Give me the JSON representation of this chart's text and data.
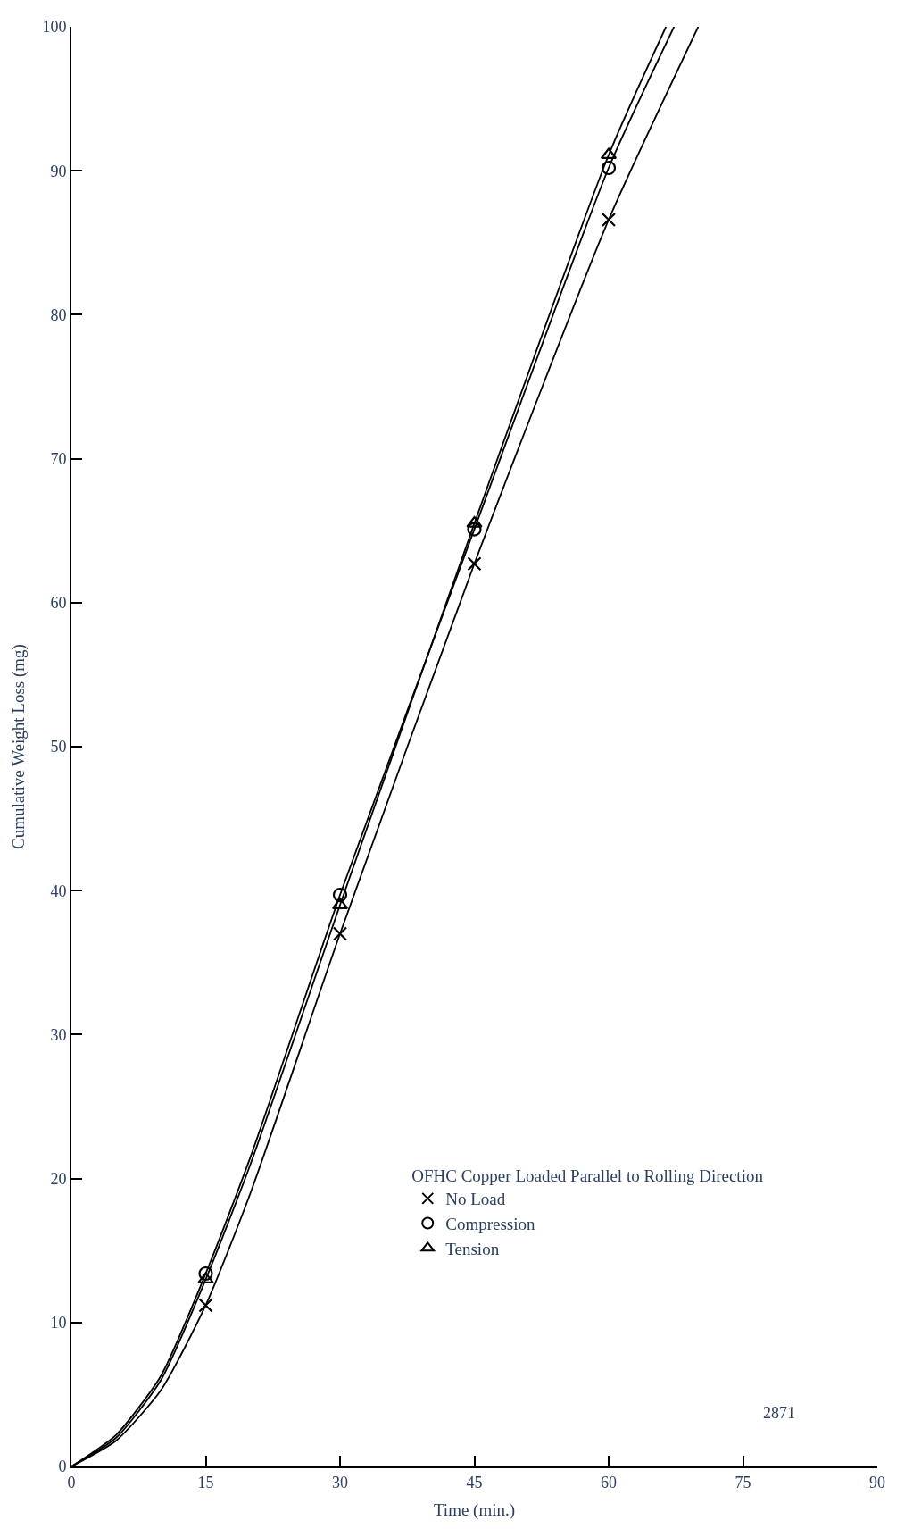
{
  "chart_data": {
    "type": "scatter",
    "xlabel": "Time (min.)",
    "ylabel": "Cumulative Weight Loss (mg)",
    "legend_title": "OFHC Copper Loaded Parallel to Rolling Direction",
    "x": [
      15,
      30,
      45,
      60
    ],
    "series": [
      {
        "name": "No Load",
        "color": "#000000",
        "marker": "cross",
        "values": [
          11.2,
          37.0,
          62.7,
          86.6
        ]
      },
      {
        "name": "Compression",
        "color": "#000000",
        "marker": "circle",
        "values": [
          13.4,
          39.7,
          65.1,
          90.2
        ]
      },
      {
        "name": "Tension",
        "color": "#000000",
        "marker": "triangle",
        "values": [
          13.0,
          39.0,
          65.5,
          91.1
        ]
      },
      {
        "type": "line",
        "color": "#000000",
        "x": [
          0,
          5,
          10,
          15,
          20,
          30,
          45,
          60,
          70
        ],
        "values": [
          0,
          1.8,
          5.3,
          11.2,
          19,
          37,
          62.7,
          86.6,
          100
        ]
      },
      {
        "type": "line",
        "color": "#000000",
        "x": [
          0,
          5,
          10,
          15,
          20,
          30,
          45,
          60,
          67.3
        ],
        "values": [
          0,
          2.2,
          6.3,
          13.4,
          21.5,
          39.7,
          65.1,
          90.2,
          100
        ]
      },
      {
        "type": "line",
        "color": "#000000",
        "x": [
          0,
          5,
          10,
          15,
          20,
          30,
          45,
          60,
          66.4
        ],
        "values": [
          0,
          2,
          6,
          13,
          21,
          39,
          65.5,
          91.1,
          100
        ]
      }
    ],
    "xlim": [
      0,
      90
    ],
    "xticks": [
      0,
      15,
      30,
      45,
      60,
      75,
      90
    ],
    "ylim": [
      0,
      100
    ],
    "yticks": [
      0,
      10,
      20,
      30,
      40,
      50,
      60,
      70,
      80,
      90,
      100
    ],
    "legend": "bottom right",
    "annotations": [
      "2871"
    ]
  }
}
